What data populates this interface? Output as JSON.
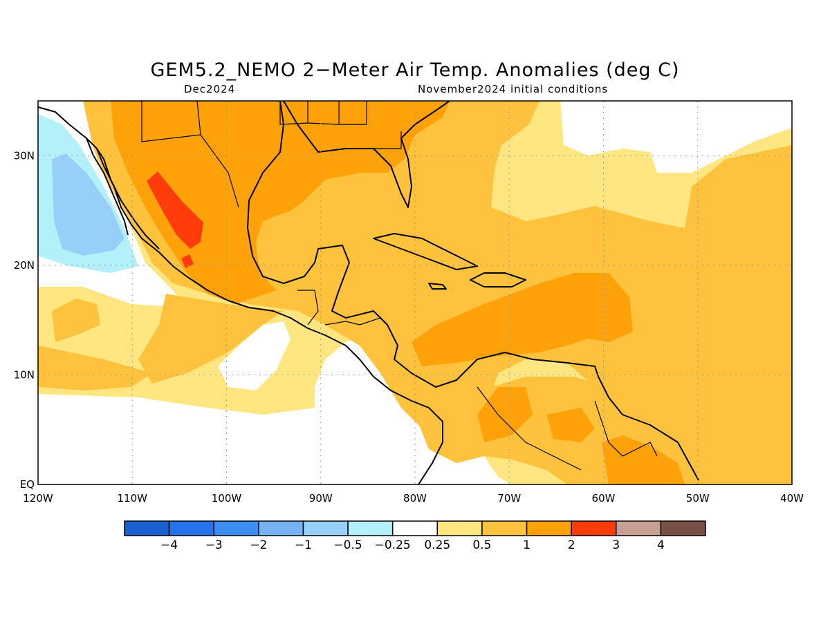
{
  "title": "GEM5.2_NEMO 2−Meter Air Temp. Anomalies (deg C)",
  "valid_month": "Dec2024",
  "init_conditions": "November2024 initial conditions",
  "map": {
    "lon_range": [
      -120,
      -40
    ],
    "lat_range": [
      0,
      35
    ],
    "lon_ticks": [
      "120W",
      "110W",
      "100W",
      "90W",
      "80W",
      "70W",
      "60W",
      "50W",
      "40W"
    ],
    "lat_ticks": [
      "30N",
      "20N",
      "10N",
      "EQ"
    ],
    "gridlines": "dotted"
  },
  "colorbar": {
    "colors": [
      "#1a5fd1",
      "#2672ec",
      "#3c8ff0",
      "#75b3f3",
      "#96d0f8",
      "#b4f0fa",
      "#ffffff",
      "#ffe680",
      "#ffc23d",
      "#ffa20a",
      "#ff3c0a",
      "#c8a092",
      "#785046"
    ],
    "labels": [
      "−4",
      "−3",
      "−2",
      "−1",
      "−0.5",
      "−0.25",
      "0.25",
      "0.5",
      "1",
      "2",
      "3",
      "4"
    ]
  }
}
